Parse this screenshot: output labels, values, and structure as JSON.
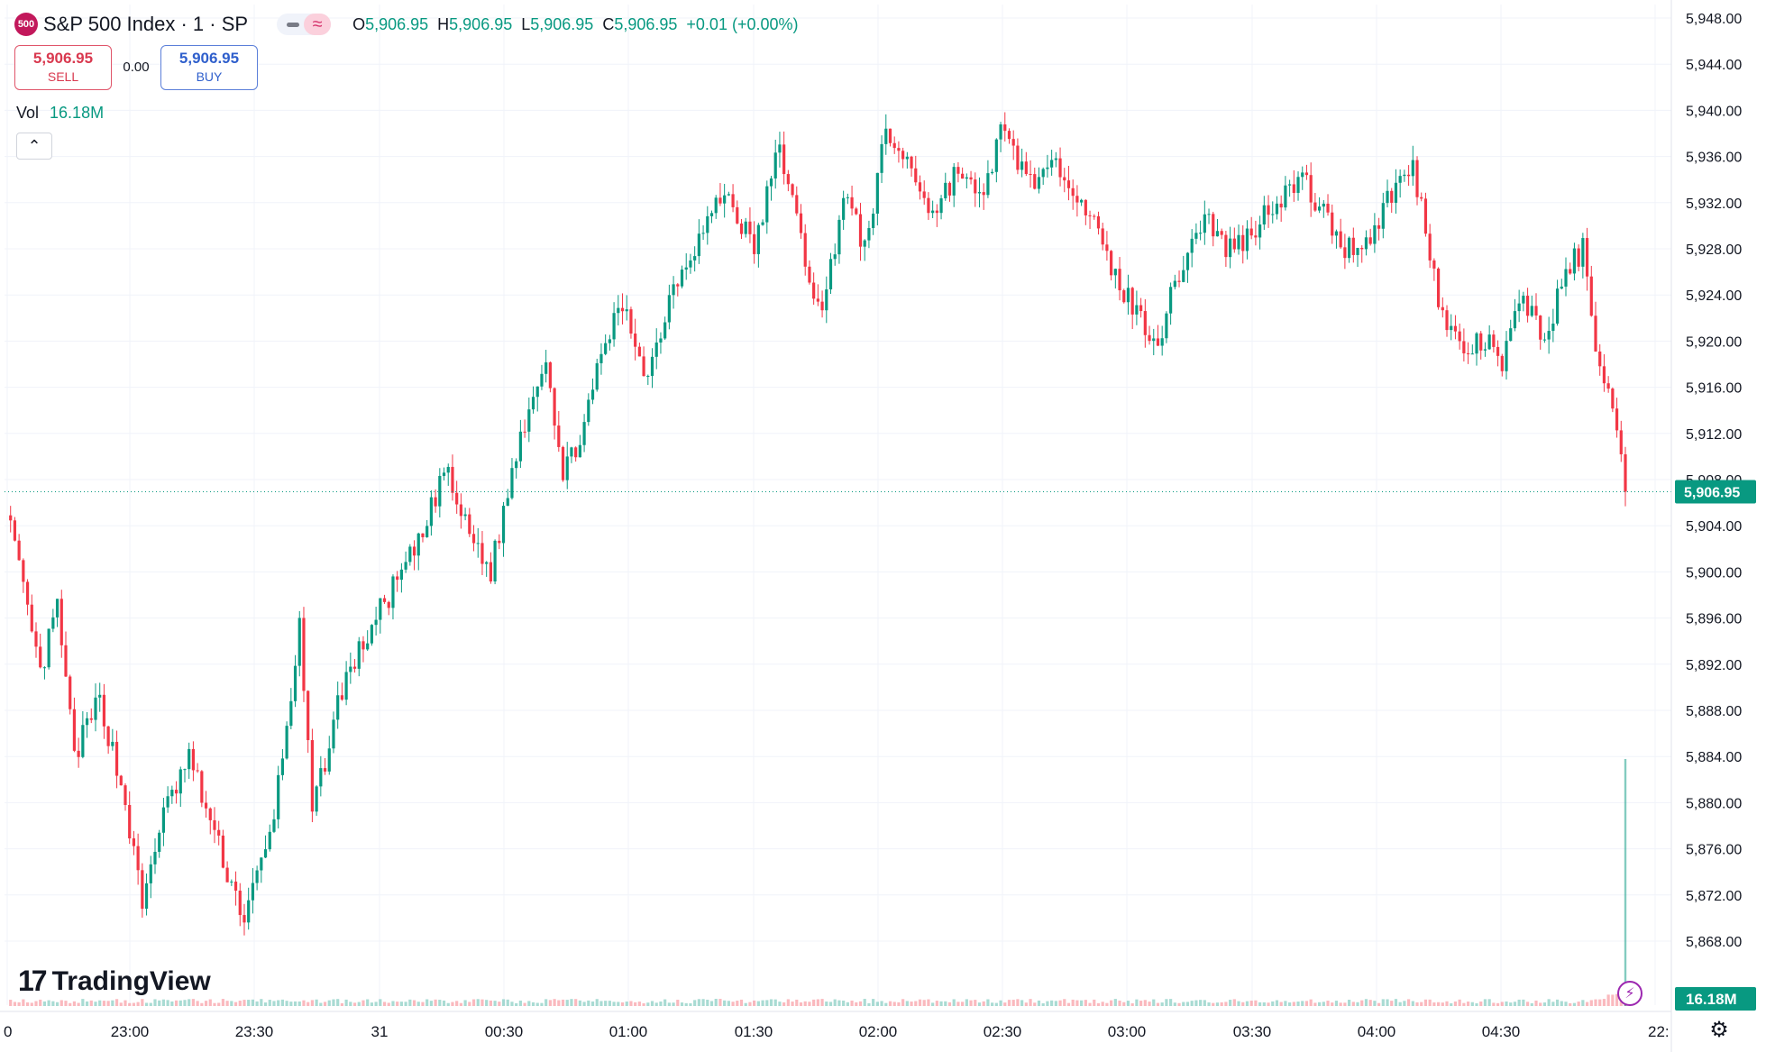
{
  "header": {
    "symbol_badge": "500",
    "title": "S&P 500 Index · 1 · SP",
    "ohlc": [
      {
        "k": "O",
        "v": "5,906.95"
      },
      {
        "k": "H",
        "v": "5,906.95"
      },
      {
        "k": "L",
        "v": "5,906.95"
      },
      {
        "k": "C",
        "v": "5,906.95"
      },
      {
        "k": "",
        "v": "+0.01 (+0.00%)"
      }
    ]
  },
  "trade": {
    "sell_price": "5,906.95",
    "sell_label": "SELL",
    "spread": "0.00",
    "buy_price": "5,906.95",
    "buy_label": "BUY"
  },
  "volume_legend": {
    "label": "Vol",
    "value": "16.18M"
  },
  "icons": {
    "collapse": "chevron-up-icon",
    "bolt": "lightning-icon",
    "settings": "gear-icon"
  },
  "logo_text": "TradingView",
  "colors": {
    "up": "#089981",
    "down": "#f23645",
    "grid": "#f0f3fa",
    "axis_text": "#131722"
  },
  "chart_data": {
    "type": "candlestick",
    "title": "S&P 500 Index · 1 · SP",
    "interval": "1 minute",
    "y_ticks": [
      5868,
      5872,
      5876,
      5880,
      5884,
      5888,
      5892,
      5896,
      5900,
      5904,
      5908,
      5912,
      5916,
      5920,
      5924,
      5928,
      5932,
      5936,
      5940,
      5944,
      5948
    ],
    "y_tick_labels": [
      "5,868.00",
      "5,872.00",
      "5,876.00",
      "5,880.00",
      "5,884.00",
      "5,888.00",
      "5,892.00",
      "5,896.00",
      "5,900.00",
      "5,904.00",
      "5,908.00",
      "5,912.00",
      "5,916.00",
      "5,920.00",
      "5,924.00",
      "5,928.00",
      "5,932.00",
      "5,936.00",
      "5,940.00",
      "5,944.00",
      "5,948.00"
    ],
    "x_tick_labels": [
      "0",
      "23:00",
      "23:30",
      "31",
      "00:30",
      "01:00",
      "01:30",
      "02:00",
      "02:30",
      "03:00",
      "03:30",
      "04:00",
      "04:30",
      "22:"
    ],
    "price_anchors": [
      [
        0,
        5906
      ],
      [
        3,
        5900
      ],
      [
        8,
        5891
      ],
      [
        12,
        5897
      ],
      [
        16,
        5884
      ],
      [
        22,
        5889
      ],
      [
        28,
        5880
      ],
      [
        32,
        5871
      ],
      [
        36,
        5878
      ],
      [
        43,
        5884
      ],
      [
        51,
        5875
      ],
      [
        56,
        5870
      ],
      [
        62,
        5877
      ],
      [
        65,
        5884
      ],
      [
        69,
        5895
      ],
      [
        72,
        5879
      ],
      [
        79,
        5890
      ],
      [
        87,
        5896
      ],
      [
        98,
        5903
      ],
      [
        103,
        5909
      ],
      [
        108,
        5904
      ],
      [
        114,
        5900
      ],
      [
        121,
        5912
      ],
      [
        127,
        5919
      ],
      [
        131,
        5908
      ],
      [
        137,
        5914
      ],
      [
        141,
        5920
      ],
      [
        145,
        5923
      ],
      [
        151,
        5917
      ],
      [
        157,
        5925
      ],
      [
        163,
        5929
      ],
      [
        169,
        5933
      ],
      [
        176,
        5928
      ],
      [
        182,
        5937
      ],
      [
        188,
        5927
      ],
      [
        192,
        5922
      ],
      [
        197,
        5933
      ],
      [
        202,
        5928
      ],
      [
        207,
        5938
      ],
      [
        213,
        5935
      ],
      [
        218,
        5931
      ],
      [
        224,
        5935
      ],
      [
        229,
        5932
      ],
      [
        234,
        5938
      ],
      [
        241,
        5934
      ],
      [
        249,
        5935
      ],
      [
        255,
        5931
      ],
      [
        259,
        5927
      ],
      [
        265,
        5923
      ],
      [
        271,
        5920
      ],
      [
        276,
        5926
      ],
      [
        282,
        5931
      ],
      [
        287,
        5928
      ],
      [
        292,
        5929
      ],
      [
        298,
        5932
      ],
      [
        305,
        5934
      ],
      [
        310,
        5931
      ],
      [
        315,
        5928
      ],
      [
        321,
        5929
      ],
      [
        326,
        5933
      ],
      [
        331,
        5935
      ],
      [
        334,
        5930
      ],
      [
        338,
        5922
      ],
      [
        343,
        5919
      ],
      [
        348,
        5920
      ],
      [
        352,
        5918
      ],
      [
        357,
        5924
      ],
      [
        362,
        5920
      ],
      [
        367,
        5926
      ],
      [
        371,
        5928
      ],
      [
        374,
        5920
      ],
      [
        378,
        5914
      ],
      [
        381,
        5907
      ]
    ],
    "last_price": 5906.95,
    "last_price_label": "5,906.95",
    "volume_last": "16.18M"
  }
}
